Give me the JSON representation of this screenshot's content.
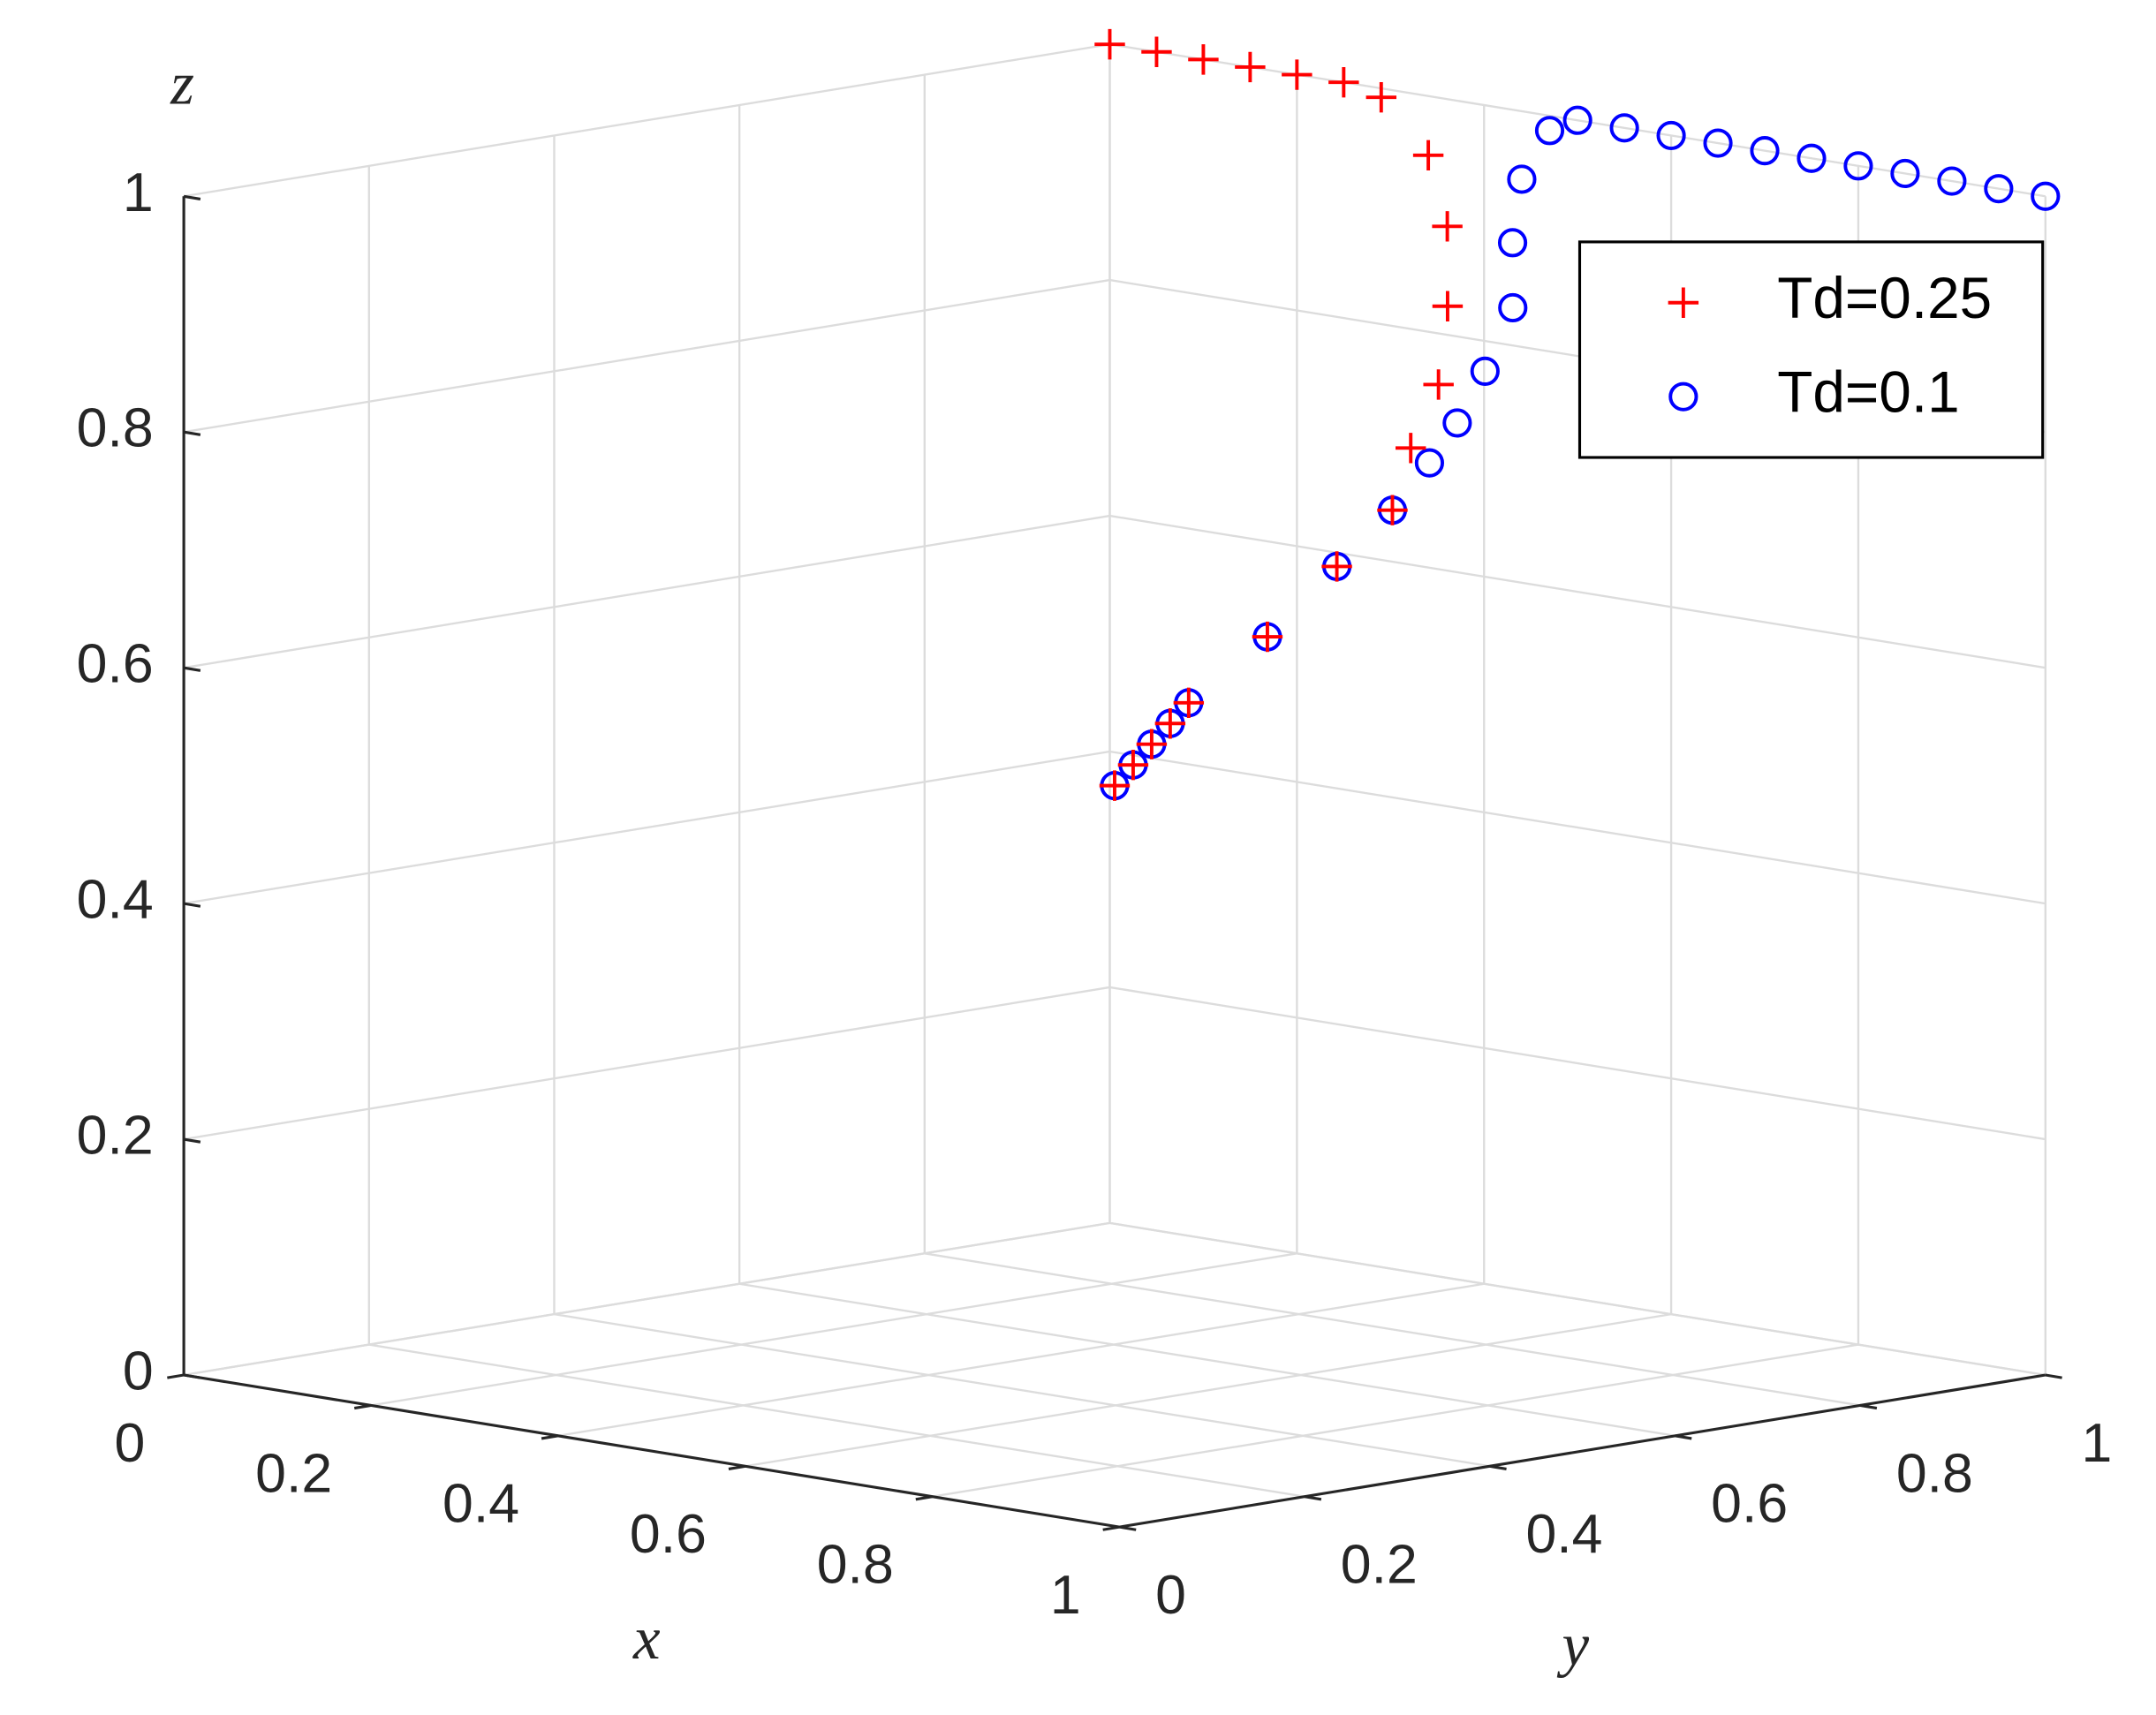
{
  "chart_data": {
    "type": "scatter3d",
    "xlabel": "x",
    "ylabel": "y",
    "zlabel": "z",
    "xlim": [
      0,
      1
    ],
    "ylim": [
      0,
      1
    ],
    "zlim": [
      0,
      1
    ],
    "xticks": [
      0,
      0.2,
      0.4,
      0.6,
      0.8,
      1
    ],
    "yticks": [
      0,
      0.2,
      0.4,
      0.6,
      0.8,
      1
    ],
    "zticks": [
      0,
      0.2,
      0.4,
      0.6,
      0.8,
      1
    ],
    "grid": true,
    "legend": "upper right",
    "series": [
      {
        "name": "Td=0.25",
        "color": "#ff0000",
        "marker": "plus",
        "x": [
          0.5,
          0.5,
          0.5,
          0.5,
          0.5,
          0.5,
          0.5,
          0.5,
          0.48,
          0.48,
          0.46,
          0.43,
          0.38,
          0.3,
          0.25,
          0.2,
          0.15,
          0.1,
          0.05,
          0
        ],
        "y": [
          0.5,
          0.52,
          0.54,
          0.56,
          0.58,
          0.665,
          0.74,
          0.8,
          0.84,
          0.87,
          0.9,
          0.93,
          0.96,
          0.99,
          1,
          1,
          1,
          1,
          1,
          1
        ],
        "z": [
          0.5,
          0.515,
          0.53,
          0.545,
          0.56,
          0.605,
          0.655,
          0.695,
          0.74,
          0.79,
          0.85,
          0.91,
          0.96,
          0.995,
          1,
          1,
          1,
          1,
          1,
          1
        ]
      },
      {
        "name": "Td=0.1",
        "color": "#0000ff",
        "marker": "circle",
        "x": [
          0.5,
          0.5,
          0.5,
          0.5,
          0.5,
          0.5,
          0.5,
          0.5,
          0.5,
          0.5,
          0.5,
          0.5,
          0.48,
          0.47,
          0.48,
          0.5,
          0.55,
          0.6,
          0.65,
          0.7,
          0.75,
          0.8,
          0.85,
          0.9,
          0.95,
          1
        ],
        "y": [
          0.5,
          0.52,
          0.54,
          0.56,
          0.58,
          0.665,
          0.74,
          0.8,
          0.84,
          0.87,
          0.9,
          0.93,
          0.95,
          0.97,
          0.99,
          1,
          1,
          1,
          1,
          1,
          1,
          1,
          1,
          1,
          1,
          1
        ],
        "z": [
          0.5,
          0.515,
          0.53,
          0.545,
          0.56,
          0.605,
          0.655,
          0.695,
          0.73,
          0.76,
          0.8,
          0.85,
          0.9,
          0.95,
          0.99,
          1,
          1,
          1,
          1,
          1,
          1,
          1,
          1,
          1,
          1,
          1
        ]
      }
    ]
  }
}
